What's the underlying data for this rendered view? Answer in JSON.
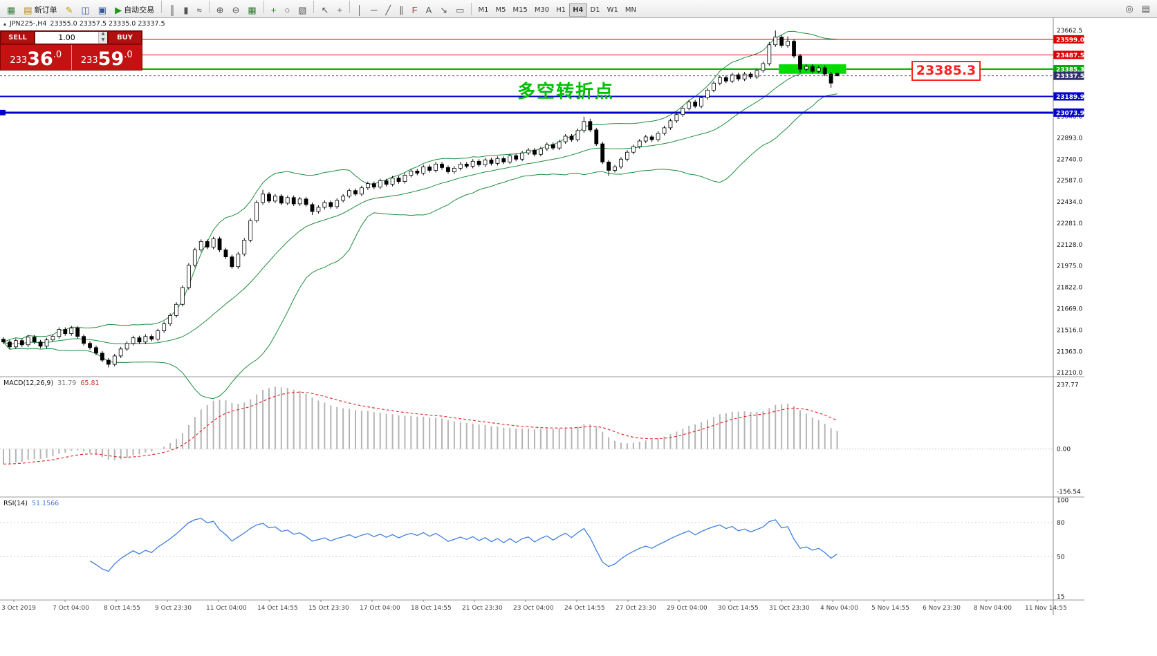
{
  "toolbar": {
    "buttons": [
      {
        "name": "new-chart",
        "glyph": "▦",
        "glyph_color": "#3c7a3c"
      },
      {
        "name": "new-order",
        "glyph": "▤",
        "glyph_color": "#b8860b",
        "label": "新订单"
      },
      {
        "name": "metaeditor",
        "glyph": "✎",
        "glyph_color": "#c8a000"
      },
      {
        "name": "market-watch",
        "glyph": "◫",
        "glyph_color": "#33589c"
      },
      {
        "name": "navigator",
        "glyph": "▣",
        "glyph_color": "#33589c"
      },
      {
        "name": "autotrading",
        "glyph": "▶",
        "glyph_color": "#1a9a1a",
        "label": "自动交易"
      },
      {
        "sep": true
      },
      {
        "name": "bar-chart",
        "glyph": "║"
      },
      {
        "name": "candle-chart",
        "glyph": "▮"
      },
      {
        "name": "line-chart",
        "glyph": "≈"
      },
      {
        "sep": true
      },
      {
        "name": "zoom-in",
        "glyph": "⊕"
      },
      {
        "name": "zoom-out",
        "glyph": "⊖"
      },
      {
        "name": "strategy-tester",
        "glyph": "▦",
        "glyph_color": "#2f7a2f"
      },
      {
        "sep": true
      },
      {
        "name": "indicators",
        "glyph": "+",
        "glyph_color": "#1a9a1a"
      },
      {
        "name": "periods",
        "glyph": "○"
      },
      {
        "name": "templates",
        "glyph": "▧"
      },
      {
        "sep": true
      },
      {
        "name": "cursor",
        "glyph": "↖"
      },
      {
        "name": "crosshair",
        "glyph": "+"
      },
      {
        "sep": true
      },
      {
        "name": "vertical-line",
        "glyph": "│"
      },
      {
        "name": "horizontal-line",
        "glyph": "─"
      },
      {
        "name": "trendline",
        "glyph": "╱"
      },
      {
        "name": "channel",
        "glyph": "∥"
      },
      {
        "name": "fibonacci",
        "glyph": "F",
        "glyph_color": "#a04040"
      },
      {
        "name": "text",
        "glyph": "A"
      },
      {
        "name": "arrow-tool",
        "glyph": "↘"
      },
      {
        "name": "shapes",
        "glyph": "▭"
      }
    ],
    "timeframes": [
      "M1",
      "M5",
      "M15",
      "M30",
      "H1",
      "H4",
      "D1",
      "W1",
      "MN"
    ],
    "active_timeframe": "H4",
    "right_buttons": [
      {
        "name": "search",
        "glyph": "◎"
      },
      {
        "name": "window-layout",
        "glyph": "▤"
      }
    ]
  },
  "chart": {
    "symbol_line": {
      "icon": "▴",
      "symbol": "JPN225-,H4",
      "ohlc": "23355.0 23357.5 23335.0 23337.5"
    },
    "trade_panel": {
      "sell_label": "SELL",
      "buy_label": "BUY",
      "volume": "1.00",
      "sell_price": {
        "pre": "233",
        "big": "36",
        "sup": ".0"
      },
      "buy_price": {
        "pre": "233",
        "big": "59",
        "sup": ".0"
      }
    },
    "annotations": {
      "turning_point_text": "多空转折点",
      "price_callout": "23385.3"
    }
  },
  "chart_data": {
    "type": "candlestick",
    "title": "JPN225- H4",
    "ylim": [
      21186,
      23752
    ],
    "x_labels": [
      "3 Oct 2019",
      "7 Oct 04:00",
      "8 Oct 14:55",
      "9 Oct 23:30",
      "11 Oct 04:00",
      "14 Oct 14:55",
      "15 Oct 23:30",
      "17 Oct 04:00",
      "18 Oct 14:55",
      "21 Oct 23:30",
      "23 Oct 04:00",
      "24 Oct 14:55",
      "27 Oct 23:30",
      "29 Oct 04:00",
      "30 Oct 14:55",
      "31 Oct 23:30",
      "4 Nov 04:00",
      "5 Nov 14:55",
      "6 Nov 23:30",
      "8 Nov 04:00",
      "11 Nov 14:55"
    ],
    "candles": [
      [
        21450,
        21465,
        21415,
        21430
      ],
      [
        21430,
        21445,
        21380,
        21395
      ],
      [
        21395,
        21455,
        21380,
        21440
      ],
      [
        21440,
        21455,
        21395,
        21410
      ],
      [
        21410,
        21480,
        21395,
        21465
      ],
      [
        21465,
        21480,
        21415,
        21430
      ],
      [
        21430,
        21445,
        21385,
        21400
      ],
      [
        21400,
        21460,
        21385,
        21445
      ],
      [
        21445,
        21485,
        21430,
        21470
      ],
      [
        21470,
        21535,
        21455,
        21520
      ],
      [
        21520,
        21535,
        21475,
        21490
      ],
      [
        21490,
        21545,
        21475,
        21530
      ],
      [
        21530,
        21545,
        21455,
        21470
      ],
      [
        21470,
        21485,
        21405,
        21420
      ],
      [
        21420,
        21435,
        21375,
        21390
      ],
      [
        21390,
        21405,
        21335,
        21350
      ],
      [
        21350,
        21365,
        21285,
        21300
      ],
      [
        21300,
        21315,
        21248,
        21270
      ],
      [
        21270,
        21345,
        21255,
        21330
      ],
      [
        21330,
        21395,
        21315,
        21380
      ],
      [
        21380,
        21435,
        21365,
        21420
      ],
      [
        21420,
        21475,
        21405,
        21460
      ],
      [
        21460,
        21475,
        21415,
        21430
      ],
      [
        21430,
        21485,
        21415,
        21470
      ],
      [
        21470,
        21485,
        21435,
        21450
      ],
      [
        21450,
        21525,
        21435,
        21510
      ],
      [
        21510,
        21575,
        21495,
        21560
      ],
      [
        21560,
        21635,
        21545,
        21620
      ],
      [
        21620,
        21715,
        21605,
        21700
      ],
      [
        21700,
        21835,
        21685,
        21820
      ],
      [
        21820,
        21995,
        21805,
        21980
      ],
      [
        21980,
        22105,
        21965,
        22090
      ],
      [
        22090,
        22165,
        22075,
        22150
      ],
      [
        22150,
        22165,
        22095,
        22110
      ],
      [
        22110,
        22185,
        22095,
        22170
      ],
      [
        22170,
        22185,
        22075,
        22090
      ],
      [
        22090,
        22105,
        22025,
        22040
      ],
      [
        22040,
        22055,
        21955,
        21970
      ],
      [
        21970,
        22075,
        21955,
        22060
      ],
      [
        22060,
        22175,
        22045,
        22160
      ],
      [
        22160,
        22315,
        22145,
        22300
      ],
      [
        22300,
        22445,
        22285,
        22430
      ],
      [
        22430,
        22520,
        22415,
        22490
      ],
      [
        22490,
        22505,
        22425,
        22440
      ],
      [
        22440,
        22490,
        22425,
        22475
      ],
      [
        22475,
        22490,
        22410,
        22425
      ],
      [
        22425,
        22480,
        22410,
        22465
      ],
      [
        22465,
        22480,
        22405,
        22420
      ],
      [
        22420,
        22470,
        22405,
        22455
      ],
      [
        22455,
        22470,
        22400,
        22415
      ],
      [
        22415,
        22430,
        22340,
        22365
      ],
      [
        22365,
        22410,
        22350,
        22395
      ],
      [
        22395,
        22445,
        22380,
        22430
      ],
      [
        22430,
        22445,
        22385,
        22400
      ],
      [
        22400,
        22460,
        22385,
        22445
      ],
      [
        22445,
        22490,
        22430,
        22475
      ],
      [
        22475,
        22530,
        22460,
        22515
      ],
      [
        22515,
        22530,
        22475,
        22490
      ],
      [
        22490,
        22550,
        22475,
        22535
      ],
      [
        22535,
        22580,
        22520,
        22565
      ],
      [
        22565,
        22580,
        22525,
        22540
      ],
      [
        22540,
        22600,
        22525,
        22585
      ],
      [
        22585,
        22600,
        22545,
        22560
      ],
      [
        22560,
        22620,
        22545,
        22605
      ],
      [
        22605,
        22620,
        22565,
        22580
      ],
      [
        22580,
        22640,
        22565,
        22625
      ],
      [
        22625,
        22670,
        22610,
        22655
      ],
      [
        22655,
        22670,
        22625,
        22640
      ],
      [
        22640,
        22700,
        22625,
        22685
      ],
      [
        22685,
        22700,
        22645,
        22660
      ],
      [
        22660,
        22720,
        22645,
        22705
      ],
      [
        22705,
        22720,
        22665,
        22680
      ],
      [
        22680,
        22695,
        22635,
        22650
      ],
      [
        22650,
        22690,
        22635,
        22675
      ],
      [
        22675,
        22720,
        22660,
        22705
      ],
      [
        22705,
        22720,
        22675,
        22690
      ],
      [
        22690,
        22740,
        22675,
        22725
      ],
      [
        22725,
        22740,
        22685,
        22700
      ],
      [
        22700,
        22750,
        22685,
        22735
      ],
      [
        22735,
        22750,
        22695,
        22710
      ],
      [
        22710,
        22760,
        22695,
        22745
      ],
      [
        22745,
        22760,
        22705,
        22720
      ],
      [
        22720,
        22780,
        22705,
        22765
      ],
      [
        22765,
        22780,
        22725,
        22740
      ],
      [
        22740,
        22800,
        22725,
        22785
      ],
      [
        22785,
        22820,
        22770,
        22805
      ],
      [
        22805,
        22820,
        22760,
        22775
      ],
      [
        22775,
        22830,
        22760,
        22815
      ],
      [
        22815,
        22860,
        22800,
        22845
      ],
      [
        22845,
        22860,
        22805,
        22820
      ],
      [
        22820,
        22880,
        22805,
        22865
      ],
      [
        22865,
        22920,
        22850,
        22905
      ],
      [
        22905,
        22920,
        22865,
        22880
      ],
      [
        22880,
        22960,
        22865,
        22945
      ],
      [
        22945,
        23045,
        22930,
        23010
      ],
      [
        23010,
        23030,
        22935,
        22950
      ],
      [
        22950,
        22965,
        22835,
        22850
      ],
      [
        22850,
        22865,
        22705,
        22720
      ],
      [
        22720,
        22735,
        22620,
        22660
      ],
      [
        22660,
        22700,
        22645,
        22685
      ],
      [
        22685,
        22755,
        22670,
        22740
      ],
      [
        22740,
        22805,
        22725,
        22790
      ],
      [
        22790,
        22845,
        22775,
        22830
      ],
      [
        22830,
        22885,
        22815,
        22870
      ],
      [
        22870,
        22915,
        22855,
        22900
      ],
      [
        22900,
        22915,
        22865,
        22880
      ],
      [
        22880,
        22940,
        22865,
        22925
      ],
      [
        22925,
        22980,
        22910,
        22965
      ],
      [
        22965,
        23030,
        22950,
        23015
      ],
      [
        23015,
        23075,
        23000,
        23060
      ],
      [
        23060,
        23120,
        23045,
        23105
      ],
      [
        23105,
        23165,
        23090,
        23150
      ],
      [
        23150,
        23165,
        23105,
        23120
      ],
      [
        23120,
        23195,
        23105,
        23180
      ],
      [
        23180,
        23250,
        23165,
        23235
      ],
      [
        23235,
        23300,
        23220,
        23285
      ],
      [
        23285,
        23340,
        23270,
        23325
      ],
      [
        23325,
        23340,
        23285,
        23300
      ],
      [
        23300,
        23360,
        23285,
        23345
      ],
      [
        23345,
        23360,
        23300,
        23315
      ],
      [
        23315,
        23365,
        23300,
        23350
      ],
      [
        23350,
        23365,
        23315,
        23330
      ],
      [
        23330,
        23390,
        23315,
        23375
      ],
      [
        23375,
        23440,
        23360,
        23425
      ],
      [
        23425,
        23580,
        23410,
        23560
      ],
      [
        23560,
        23662,
        23545,
        23615
      ],
      [
        23615,
        23630,
        23540,
        23555
      ],
      [
        23555,
        23620,
        23540,
        23585
      ],
      [
        23585,
        23600,
        23465,
        23480
      ],
      [
        23480,
        23495,
        23360,
        23385
      ],
      [
        23385,
        23420,
        23370,
        23405
      ],
      [
        23405,
        23420,
        23355,
        23370
      ],
      [
        23370,
        23410,
        23355,
        23395
      ],
      [
        23395,
        23410,
        23335,
        23350
      ],
      [
        23350,
        23365,
        23252,
        23285
      ],
      [
        23355,
        23357.5,
        23335,
        23337.5
      ]
    ],
    "overlays": {
      "bollinger": {
        "period": 20,
        "deviation": 2,
        "color": "#1e8c3c"
      }
    },
    "hlines": [
      {
        "price": 23599.0,
        "color": "#dd0000",
        "width": 1
      },
      {
        "price": 23487.5,
        "color": "#dd0000",
        "width": 1
      },
      {
        "price": 23385.3,
        "color": "#00b000",
        "width": 2
      },
      {
        "price": 23189.9,
        "color": "#0000cc",
        "width": 2
      },
      {
        "price": 23073.9,
        "color": "#0000cc",
        "width": 3,
        "left_marker": true
      }
    ],
    "current_price": {
      "value": 23337.5,
      "color": "#555555"
    },
    "highlight_rect": {
      "from_index": 126,
      "to_index": 136,
      "price_top": 23420,
      "price_bottom": 23352,
      "color": "#00dc00"
    },
    "y_axis": {
      "labels": [
        "23662.5",
        "23046.0",
        "22893.0",
        "22740.0",
        "22587.0",
        "22434.0",
        "22281.0",
        "22128.0",
        "21975.0",
        "21822.0",
        "21669.0",
        "21516.0",
        "21363.0",
        "21210.0"
      ],
      "badges": [
        {
          "label": "23599.0",
          "price": 23599.0,
          "color": "#dd0000"
        },
        {
          "label": "23487.5",
          "price": 23487.5,
          "color": "#dd0000"
        },
        {
          "label": "23385.3",
          "price": 23385.3,
          "color": "#00aa00"
        },
        {
          "label": "23337.5",
          "price": 23337.5,
          "color": "#2e2e6e"
        },
        {
          "label": "23189.9",
          "price": 23189.9,
          "color": "#0000cc"
        },
        {
          "label": "23073.9",
          "price": 23073.9,
          "color": "#0000cc"
        }
      ]
    },
    "indicators": [
      {
        "type": "macd",
        "label": "MACD(12,26,9)",
        "values": [
          "31.79",
          "65.81"
        ],
        "fast": 12,
        "slow": 26,
        "signal": 9,
        "ylim": [
          -175,
          265
        ],
        "axis_labels": [
          "237.77",
          "0.00",
          "-156.54"
        ],
        "axis_values": [
          237.77,
          0,
          -156.54
        ],
        "histogram_color": "#b4b4b4",
        "signal_color": "#e03030"
      },
      {
        "type": "rsi",
        "label": "RSI(14)",
        "value": "51.1566",
        "period": 14,
        "ylim": [
          12,
          102
        ],
        "levels": [
          80,
          50
        ],
        "axis_labels": [
          "100",
          "80",
          "50",
          "15"
        ],
        "axis_values": [
          100,
          80,
          50,
          15
        ],
        "line_color": "#3d7ede"
      }
    ]
  }
}
